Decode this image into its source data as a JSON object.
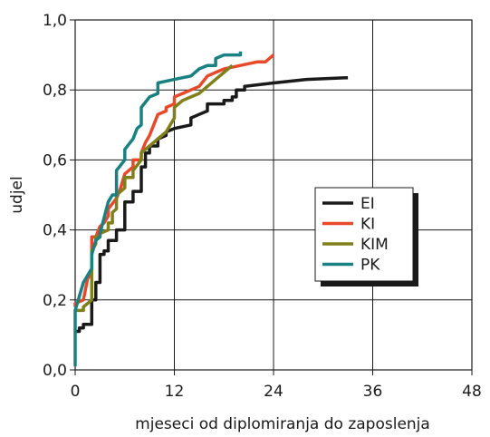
{
  "chart_data": {
    "type": "line",
    "title": "",
    "xlabel": "mjeseci od diplomiranja do zaposlenja",
    "ylabel": "udjel",
    "xlim": [
      0,
      48
    ],
    "ylim": [
      0,
      1.0
    ],
    "x_ticks": [
      0,
      12,
      24,
      36,
      48
    ],
    "x_tick_labels": [
      "0",
      "12",
      "24",
      "36",
      "48"
    ],
    "y_ticks": [
      0,
      0.2,
      0.4,
      0.6,
      0.8,
      1.0
    ],
    "y_tick_labels": [
      "0,0",
      "0,2",
      "0,4",
      "0,6",
      "0,8",
      "1,0"
    ],
    "grid": true,
    "legend_position": "right",
    "series": [
      {
        "name": "EI",
        "color": "#1a1a1a",
        "points": [
          [
            0,
            0.11
          ],
          [
            0.5,
            0.11
          ],
          [
            0.5,
            0.12
          ],
          [
            1,
            0.12
          ],
          [
            1,
            0.13
          ],
          [
            2,
            0.13
          ],
          [
            2,
            0.2
          ],
          [
            2.5,
            0.2
          ],
          [
            2.5,
            0.25
          ],
          [
            3,
            0.25
          ],
          [
            3,
            0.33
          ],
          [
            3.5,
            0.33
          ],
          [
            3.5,
            0.34
          ],
          [
            4,
            0.34
          ],
          [
            4,
            0.37
          ],
          [
            5,
            0.37
          ],
          [
            5,
            0.4
          ],
          [
            6,
            0.4
          ],
          [
            6,
            0.48
          ],
          [
            7,
            0.48
          ],
          [
            7,
            0.51
          ],
          [
            8,
            0.51
          ],
          [
            8,
            0.58
          ],
          [
            8.5,
            0.58
          ],
          [
            8.5,
            0.62
          ],
          [
            9,
            0.62
          ],
          [
            9,
            0.64
          ],
          [
            10,
            0.64
          ],
          [
            10,
            0.66
          ],
          [
            11,
            0.67
          ],
          [
            11,
            0.68
          ],
          [
            12,
            0.69
          ],
          [
            14,
            0.7
          ],
          [
            14,
            0.72
          ],
          [
            15,
            0.73
          ],
          [
            16,
            0.74
          ],
          [
            16,
            0.76
          ],
          [
            18,
            0.76
          ],
          [
            18,
            0.77
          ],
          [
            19,
            0.77
          ],
          [
            19,
            0.78
          ],
          [
            19.5,
            0.78
          ],
          [
            19.5,
            0.8
          ],
          [
            20.5,
            0.8
          ],
          [
            20.5,
            0.81
          ],
          [
            24,
            0.82
          ],
          [
            28,
            0.83
          ],
          [
            33,
            0.835
          ]
        ]
      },
      {
        "name": "KI",
        "color": "#e8492a",
        "points": [
          [
            0,
            0.18
          ],
          [
            0,
            0.19
          ],
          [
            1,
            0.2
          ],
          [
            1.5,
            0.26
          ],
          [
            2,
            0.28
          ],
          [
            2,
            0.38
          ],
          [
            2.5,
            0.38
          ],
          [
            3,
            0.41
          ],
          [
            3.5,
            0.42
          ],
          [
            4,
            0.44
          ],
          [
            4,
            0.46
          ],
          [
            5,
            0.49
          ],
          [
            5.5,
            0.52
          ],
          [
            6,
            0.56
          ],
          [
            7,
            0.58
          ],
          [
            7,
            0.6
          ],
          [
            8,
            0.6
          ],
          [
            8,
            0.62
          ],
          [
            8.5,
            0.65
          ],
          [
            9,
            0.67
          ],
          [
            9.5,
            0.7
          ],
          [
            10,
            0.73
          ],
          [
            11,
            0.74
          ],
          [
            11,
            0.75
          ],
          [
            12,
            0.76
          ],
          [
            12,
            0.78
          ],
          [
            13,
            0.79
          ],
          [
            14,
            0.8
          ],
          [
            15,
            0.81
          ],
          [
            16,
            0.84
          ],
          [
            17,
            0.85
          ],
          [
            18,
            0.86
          ],
          [
            20,
            0.87
          ],
          [
            22,
            0.88
          ],
          [
            23,
            0.88
          ],
          [
            24,
            0.9
          ]
        ]
      },
      {
        "name": "KIM",
        "color": "#7f7f1c",
        "points": [
          [
            0,
            0.17
          ],
          [
            1,
            0.17
          ],
          [
            1,
            0.18
          ],
          [
            2,
            0.2
          ],
          [
            2,
            0.34
          ],
          [
            2.5,
            0.36
          ],
          [
            2.5,
            0.38
          ],
          [
            3,
            0.38
          ],
          [
            3,
            0.39
          ],
          [
            4,
            0.4
          ],
          [
            4,
            0.42
          ],
          [
            4.5,
            0.42
          ],
          [
            4.5,
            0.45
          ],
          [
            5,
            0.46
          ],
          [
            5,
            0.5
          ],
          [
            6,
            0.52
          ],
          [
            6,
            0.55
          ],
          [
            7,
            0.55
          ],
          [
            7,
            0.57
          ],
          [
            8,
            0.6
          ],
          [
            8,
            0.62
          ],
          [
            9,
            0.64
          ],
          [
            10,
            0.66
          ],
          [
            11,
            0.68
          ],
          [
            12,
            0.72
          ],
          [
            12,
            0.75
          ],
          [
            13,
            0.77
          ],
          [
            14,
            0.78
          ],
          [
            15,
            0.79
          ],
          [
            16,
            0.81
          ],
          [
            17,
            0.83
          ],
          [
            18,
            0.85
          ],
          [
            19,
            0.87
          ]
        ]
      },
      {
        "name": "PK",
        "color": "#1a8080",
        "points": [
          [
            0,
            0.01
          ],
          [
            0,
            0.17
          ],
          [
            1,
            0.25
          ],
          [
            2,
            0.29
          ],
          [
            2,
            0.33
          ],
          [
            2.5,
            0.37
          ],
          [
            3,
            0.38
          ],
          [
            3,
            0.39
          ],
          [
            4,
            0.48
          ],
          [
            4.5,
            0.5
          ],
          [
            5,
            0.5
          ],
          [
            5,
            0.57
          ],
          [
            6,
            0.6
          ],
          [
            6,
            0.63
          ],
          [
            7,
            0.66
          ],
          [
            7.5,
            0.69
          ],
          [
            8,
            0.7
          ],
          [
            8,
            0.75
          ],
          [
            9,
            0.78
          ],
          [
            10,
            0.79
          ],
          [
            10,
            0.82
          ],
          [
            12,
            0.83
          ],
          [
            14,
            0.84
          ],
          [
            15,
            0.86
          ],
          [
            16,
            0.87
          ],
          [
            17,
            0.87
          ],
          [
            17,
            0.89
          ],
          [
            18,
            0.9
          ],
          [
            20,
            0.9
          ],
          [
            20,
            0.91
          ]
        ]
      }
    ]
  }
}
